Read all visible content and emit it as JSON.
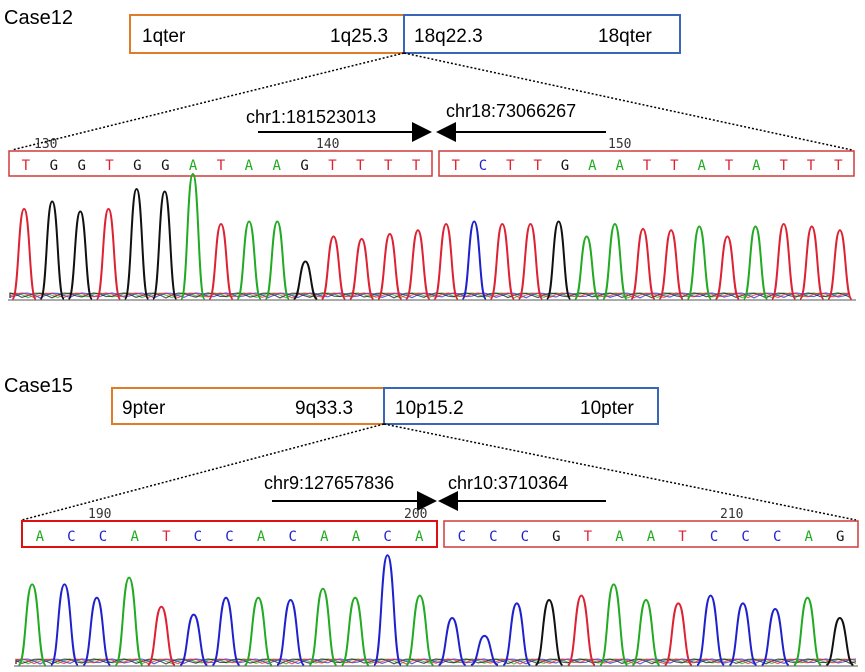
{
  "colors": {
    "A": "#22aa22",
    "C": "#1f22cc",
    "G": "#111111",
    "T": "#dd2233",
    "orange": "#e07b2a",
    "blue": "#3a66b8",
    "seq_box": "#d03a3a"
  },
  "cases": [
    {
      "label": "Case12",
      "left_chrom": {
        "start": "1qter",
        "end": "1q25.3"
      },
      "right_chrom": {
        "start": "18q22.3",
        "end": "18qter"
      },
      "left_breakpoint": "chr1:181523013",
      "right_breakpoint": "chr18:73066267",
      "positions": [
        "130",
        "140",
        "150"
      ],
      "left_seq": [
        "T",
        "G",
        "G",
        "T",
        "G",
        "G",
        "A",
        "T",
        "A",
        "A",
        "G",
        "T",
        "T",
        "T",
        "T"
      ],
      "right_seq": [
        "T",
        "C",
        "T",
        "T",
        "G",
        "A",
        "A",
        "T",
        "T",
        "A",
        "T",
        "A",
        "T",
        "T",
        "T"
      ],
      "peak_heights": [
        0.72,
        0.78,
        0.7,
        0.72,
        0.88,
        0.86,
        1.0,
        0.6,
        0.62,
        0.62,
        0.3,
        0.5,
        0.48,
        0.52,
        0.55,
        0.6,
        0.62,
        0.6,
        0.6,
        0.62,
        0.5,
        0.6,
        0.56,
        0.55,
        0.58,
        0.5,
        0.58,
        0.6,
        0.58,
        0.55
      ]
    },
    {
      "label": "Case15",
      "left_chrom": {
        "start": "9pter",
        "end": "9q33.3"
      },
      "right_chrom": {
        "start": "10p15.2",
        "end": "10pter"
      },
      "left_breakpoint": "chr9:127657836",
      "right_breakpoint": "chr10:3710364",
      "positions": [
        "190",
        "200",
        "210"
      ],
      "left_seq": [
        "A",
        "C",
        "C",
        "A",
        "T",
        "C",
        "C",
        "A",
        "C",
        "A",
        "A",
        "C",
        "A"
      ],
      "right_seq": [
        "C",
        "C",
        "C",
        "G",
        "T",
        "A",
        "A",
        "T",
        "C",
        "C",
        "C",
        "A",
        "G"
      ],
      "peak_heights": [
        0.72,
        0.72,
        0.6,
        0.78,
        0.52,
        0.45,
        0.6,
        0.6,
        0.58,
        0.68,
        0.6,
        0.98,
        0.62,
        0.42,
        0.26,
        0.55,
        0.58,
        0.62,
        0.72,
        0.58,
        0.55,
        0.62,
        0.55,
        0.5,
        0.6,
        0.42
      ]
    }
  ]
}
